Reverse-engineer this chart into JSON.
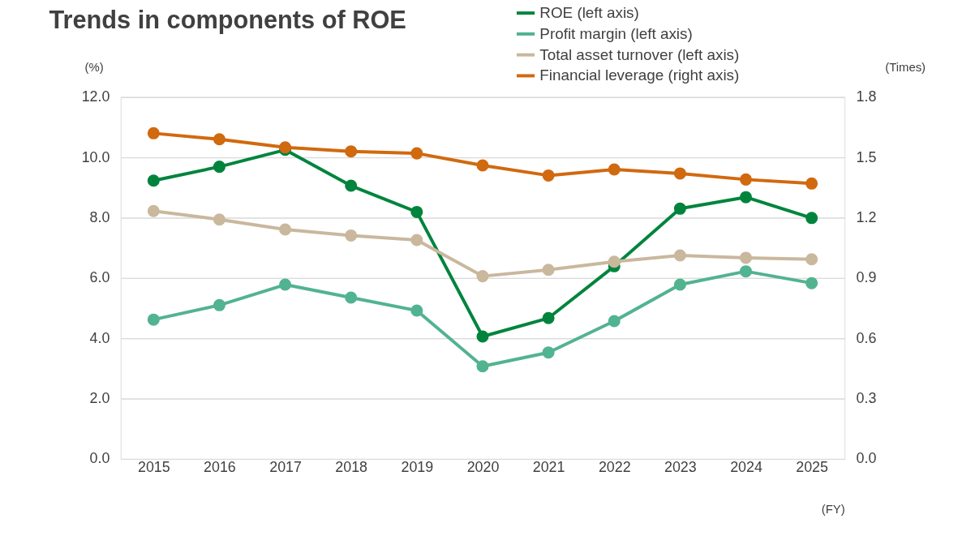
{
  "chart_data": {
    "type": "line",
    "title": "Trends in components of ROE",
    "ylabel": "(%)",
    "y2label": "(Times)",
    "xlabel": "(FY)",
    "categories": [
      "2015",
      "2016",
      "2017",
      "2018",
      "2019",
      "2020",
      "2021",
      "2022",
      "2023",
      "2024",
      "2025"
    ],
    "series": [
      {
        "name": "ROE (left axis)",
        "color": "#00843d",
        "values": [
          9.23,
          9.69,
          10.25,
          9.06,
          8.19,
          4.06,
          4.67,
          6.39,
          8.3,
          8.68,
          7.99
        ]
      },
      {
        "name": "Profit margin (left axis)",
        "color": "#52b390",
        "values": [
          4.62,
          5.1,
          5.78,
          5.35,
          4.92,
          3.07,
          3.53,
          4.57,
          5.78,
          6.22,
          5.83
        ]
      },
      {
        "name": "Total asset turnover (left axis)",
        "color": "#c9b89d",
        "values": [
          8.22,
          7.94,
          7.61,
          7.41,
          7.26,
          6.06,
          6.27,
          6.54,
          6.75,
          6.67,
          6.62
        ]
      },
      {
        "name": "Financial leverage (right axis)",
        "color": "#d1690f",
        "axis": "y2",
        "values": [
          1.62,
          1.59,
          1.55,
          1.53,
          1.52,
          1.46,
          1.41,
          1.44,
          1.42,
          1.39,
          1.37
        ]
      }
    ],
    "ylim": [
      0,
      12
    ],
    "yticks": [
      {
        "value": 0,
        "label": "0.0"
      },
      {
        "value": 2,
        "label": "2.0"
      },
      {
        "value": 4,
        "label": "4.0"
      },
      {
        "value": 6,
        "label": "6.0"
      },
      {
        "value": 8,
        "label": "8.0"
      },
      {
        "value": 10,
        "label": "10.0"
      },
      {
        "value": 12,
        "label": "12.0"
      }
    ],
    "y2lim": [
      0,
      1.8
    ],
    "y2ticks": [
      {
        "value": 0,
        "label": "0.0"
      },
      {
        "value": 0.3,
        "label": "0.3"
      },
      {
        "value": 0.6,
        "label": "0.6"
      },
      {
        "value": 0.9,
        "label": "0.9"
      },
      {
        "value": 1.2,
        "label": "1.2"
      },
      {
        "value": 1.5,
        "label": "1.5"
      },
      {
        "value": 1.8,
        "label": "1.8"
      }
    ],
    "grid": "y",
    "legend": "top right",
    "marker": "circle",
    "line_style": "solid"
  }
}
